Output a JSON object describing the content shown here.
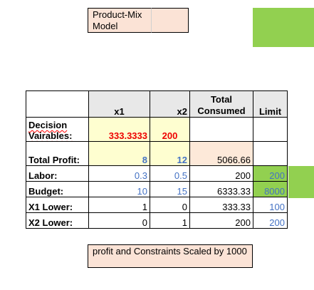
{
  "title": "Product-Mix Model",
  "table": {
    "headers": {
      "x1": "x1",
      "x2": "x2",
      "total_consumed": "Total Consumed",
      "limit": "Limit"
    },
    "rows": {
      "decision": {
        "label": "Decision Vairables:",
        "x1": "333.3333",
        "x2": "200",
        "total": "",
        "limit": ""
      },
      "profit": {
        "label": "Total Profit:",
        "x1": "8",
        "x2": "12",
        "total": "5066.66",
        "limit": ""
      },
      "labor": {
        "label": "Labor:",
        "x1": "0.3",
        "x2": "0.5",
        "total": "200",
        "limit": "200"
      },
      "budget": {
        "label": "Budget:",
        "x1": "10",
        "x2": "15",
        "total": "6333.33",
        "limit": "8000"
      },
      "x1_lower": {
        "label": "X1 Lower:",
        "x1": "1",
        "x2": "0",
        "total": "333.33",
        "limit": "100"
      },
      "x2_lower": {
        "label": "X2 Lower:",
        "x1": "0",
        "x2": "1",
        "total": "200",
        "limit": "200"
      }
    }
  },
  "note": "profit and Constraints Scaled by 1000",
  "colors": {
    "peach": "#fbe3d6",
    "yellow": "#fefed0",
    "green": "#92d050",
    "red_text": "#ee0000",
    "blue_text": "#4472c4",
    "header_gray": "#e8e8e8"
  }
}
